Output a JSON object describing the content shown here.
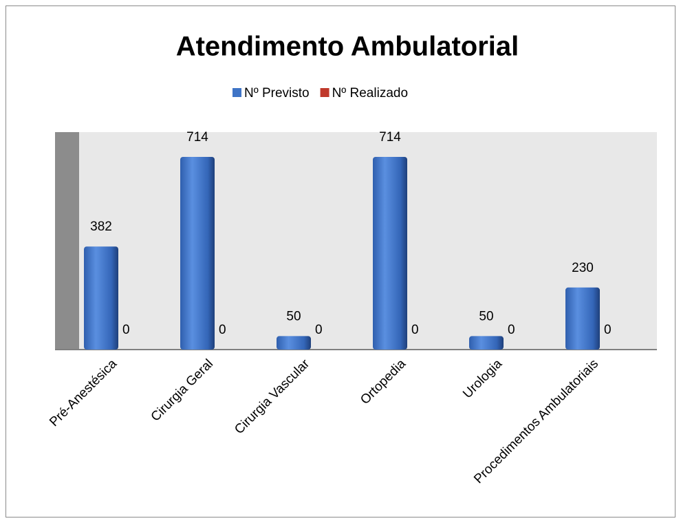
{
  "chart_data": {
    "type": "bar",
    "title": "Atendimento Ambulatorial",
    "categories": [
      "Pré-Anestésica",
      "Cirurgia Geral",
      "Cirurgia Vascular",
      "Ortopedia",
      "Urologia",
      "Procedimentos Ambulatoriais"
    ],
    "series": [
      {
        "name": "Nº  Previsto",
        "color": "#3f74c6",
        "values": [
          382,
          714,
          50,
          714,
          50,
          230
        ]
      },
      {
        "name": "Nº  Realizado",
        "color": "#c0392b",
        "values": [
          0,
          0,
          0,
          0,
          0,
          0
        ]
      }
    ],
    "legend": "top"
  }
}
